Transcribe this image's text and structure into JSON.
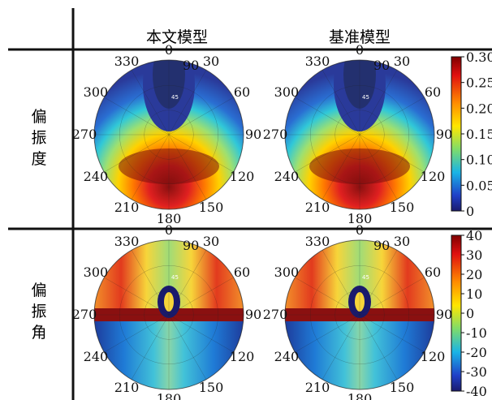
{
  "table": {
    "column_headers": [
      "本文模型",
      "基准模型"
    ],
    "rows": [
      {
        "label_chars": [
          "偏",
          "振",
          "度"
        ]
      },
      {
        "label_chars": [
          "偏",
          "振",
          "角"
        ]
      }
    ]
  },
  "polar_axes": {
    "angle_labels": [
      "0",
      "30",
      "60",
      "90",
      "120",
      "150",
      "180",
      "210",
      "240",
      "270",
      "300",
      "330"
    ],
    "inner_ring_labels": [
      "90",
      "45"
    ]
  },
  "colorbars": [
    {
      "row": "偏振度",
      "ticks": [
        "0.30",
        "0.25",
        "0.20",
        "0.15",
        "0.10",
        "0.05",
        "0"
      ]
    },
    {
      "row": "偏振角",
      "ticks": [
        "40",
        "30",
        "20",
        "10",
        "0",
        "-10",
        "-20",
        "-30",
        "-40"
      ]
    }
  ],
  "colors": {
    "grid": "#222222",
    "table_line": "#111111"
  }
}
